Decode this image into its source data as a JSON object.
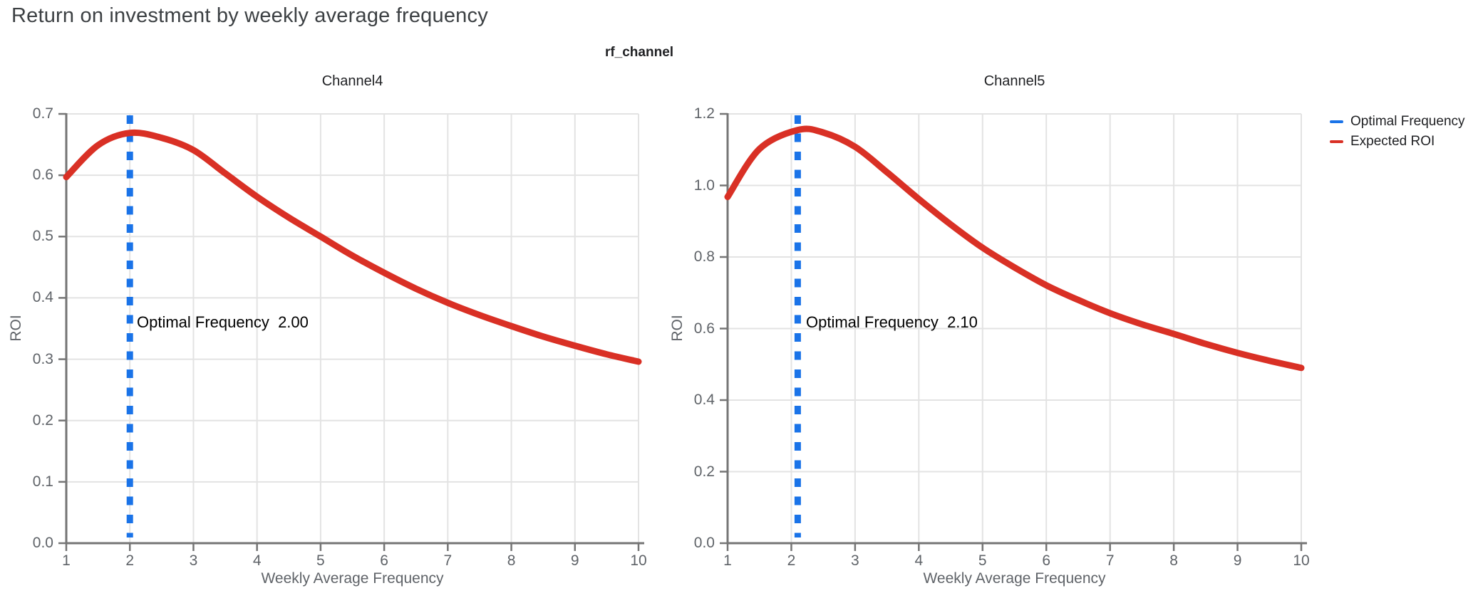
{
  "page_title": "Return on investment by weekly average frequency",
  "facet_title": "rf_channel",
  "legend": {
    "items": [
      {
        "label": "Optimal Frequency",
        "color": "#1a73e8"
      },
      {
        "label": "Expected ROI",
        "color": "#d93025"
      }
    ]
  },
  "colors": {
    "optimal": "#1a73e8",
    "roi": "#d93025",
    "grid": "#e3e3e3",
    "axis": "#757575",
    "title": "#3c4043",
    "tick_label": "#5f6368"
  },
  "chart_data": [
    {
      "type": "line",
      "title": "Channel4",
      "xlabel": "Weekly Average Frequency",
      "ylabel": "ROI",
      "xlim": [
        1,
        10
      ],
      "ylim": [
        0,
        0.7
      ],
      "x_ticks": [
        1,
        2,
        3,
        4,
        5,
        6,
        7,
        8,
        9,
        10
      ],
      "x_tick_labels": [
        "1",
        "2",
        "3",
        "4",
        "5",
        "6",
        "7",
        "8",
        "9",
        "10"
      ],
      "y_ticks": [
        0.0,
        0.1,
        0.2,
        0.3,
        0.4,
        0.5,
        0.6,
        0.7
      ],
      "y_tick_labels": [
        "0.0",
        "0.1",
        "0.2",
        "0.3",
        "0.4",
        "0.5",
        "0.6",
        "0.7"
      ],
      "grid": true,
      "optimal_frequency": 2.0,
      "annotation": "Optimal Frequency  2.00",
      "series": [
        {
          "name": "Expected ROI",
          "x": [
            1,
            1.5,
            2,
            2.5,
            3,
            3.5,
            4,
            4.5,
            5,
            5.5,
            6,
            6.5,
            7,
            7.5,
            8,
            8.5,
            9,
            9.5,
            10
          ],
          "y": [
            0.597,
            0.649,
            0.669,
            0.661,
            0.641,
            0.603,
            0.565,
            0.531,
            0.5,
            0.469,
            0.441,
            0.415,
            0.392,
            0.372,
            0.354,
            0.337,
            0.322,
            0.308,
            0.296
          ]
        }
      ]
    },
    {
      "type": "line",
      "title": "Channel5",
      "xlabel": "Weekly Average Frequency",
      "ylabel": "ROI",
      "xlim": [
        1,
        10
      ],
      "ylim": [
        0,
        1.2
      ],
      "x_ticks": [
        1,
        2,
        3,
        4,
        5,
        6,
        7,
        8,
        9,
        10
      ],
      "x_tick_labels": [
        "1",
        "2",
        "3",
        "4",
        "5",
        "6",
        "7",
        "8",
        "9",
        "10"
      ],
      "y_ticks": [
        0.0,
        0.2,
        0.4,
        0.6,
        0.8,
        1.0,
        1.2
      ],
      "y_tick_labels": [
        "0.0",
        "0.2",
        "0.4",
        "0.6",
        "0.8",
        "1.0",
        "1.2"
      ],
      "grid": true,
      "optimal_frequency": 2.1,
      "annotation": "Optimal Frequency  2.10",
      "series": [
        {
          "name": "Expected ROI",
          "x": [
            1,
            1.5,
            2.1,
            2.5,
            3,
            3.5,
            4,
            4.5,
            5,
            5.5,
            6,
            6.5,
            7,
            7.5,
            8,
            8.5,
            9,
            9.5,
            10
          ],
          "y": [
            0.968,
            1.102,
            1.155,
            1.148,
            1.108,
            1.037,
            0.962,
            0.891,
            0.826,
            0.771,
            0.721,
            0.68,
            0.643,
            0.612,
            0.585,
            0.557,
            0.532,
            0.51,
            0.49
          ]
        }
      ]
    }
  ]
}
